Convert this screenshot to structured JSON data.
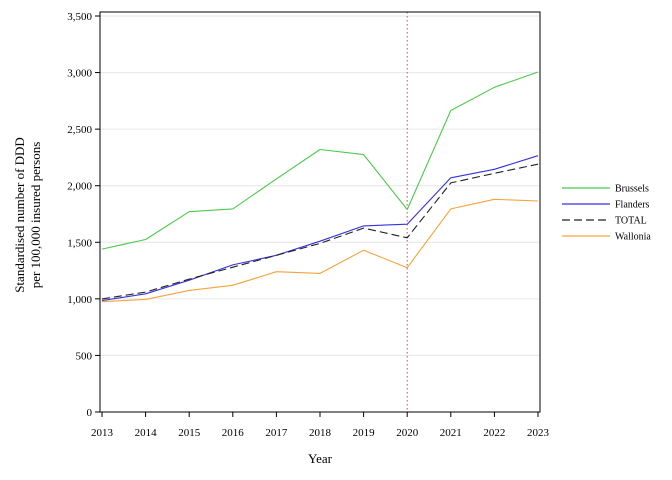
{
  "chart_data": {
    "type": "line",
    "xlabel": "Year",
    "ylabel_lines": [
      "Standardised number of DDD",
      "per 100,000 insured persons"
    ],
    "x": [
      2013,
      2014,
      2015,
      2016,
      2017,
      2018,
      2019,
      2020,
      2021,
      2022,
      2023
    ],
    "xtick_labels": [
      "2013",
      "2014",
      "2015",
      "2016",
      "2017",
      "2018",
      "2019",
      "2020",
      "2021",
      "2022",
      "2023"
    ],
    "ylim": [
      0,
      3500
    ],
    "yticks": [
      0,
      500,
      1000,
      1500,
      2000,
      2500,
      3000,
      3500
    ],
    "ytick_labels": [
      "0",
      "500",
      "1,000",
      "1,500",
      "2,000",
      "2,500",
      "3,000",
      "3,500"
    ],
    "grid": "horizontal",
    "legend_position": "right",
    "vertical_reference_line": {
      "x": 2020,
      "color": "#e06666",
      "style": "dotted"
    },
    "series": [
      {
        "name": "Brussels",
        "color": "#4cc94c",
        "dash": "solid",
        "values": [
          1440,
          1525,
          1770,
          1795,
          2060,
          2320,
          2275,
          1790,
          2665,
          2870,
          3005
        ]
      },
      {
        "name": "Flanders",
        "color": "#3333dd",
        "dash": "solid",
        "values": [
          985,
          1045,
          1165,
          1300,
          1385,
          1510,
          1645,
          1660,
          2070,
          2145,
          2265
        ]
      },
      {
        "name": "TOTAL",
        "color": "#222222",
        "dash": "dashed",
        "values": [
          1000,
          1060,
          1175,
          1280,
          1385,
          1490,
          1625,
          1540,
          2025,
          2110,
          2190
        ]
      },
      {
        "name": "Wallonia",
        "color": "#f5a33a",
        "dash": "solid",
        "values": [
          975,
          995,
          1075,
          1120,
          1240,
          1225,
          1430,
          1275,
          1795,
          1880,
          1865
        ]
      }
    ]
  }
}
